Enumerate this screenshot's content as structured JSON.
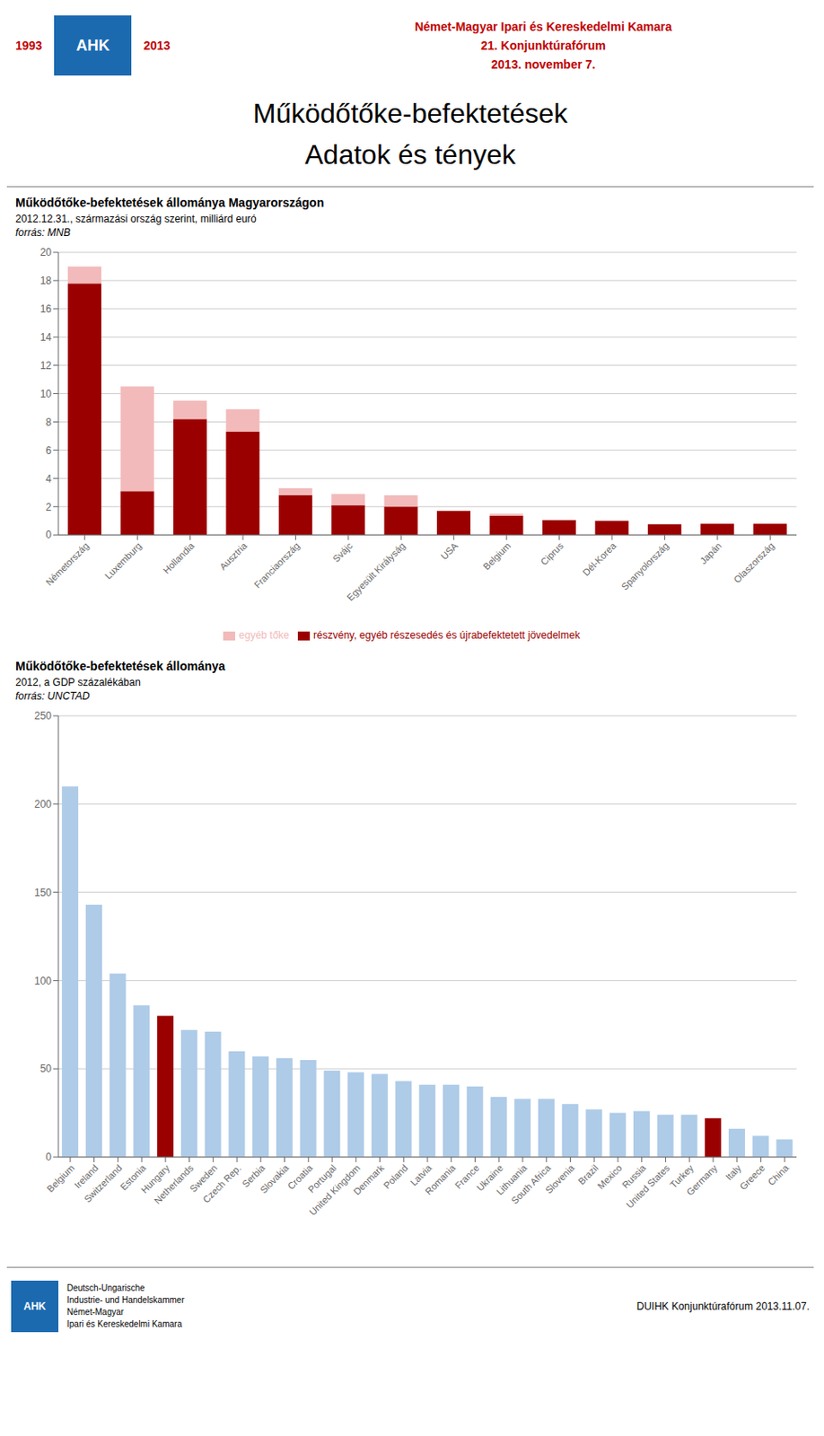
{
  "title": "Működőtőke-befektetések",
  "subtitle": "Adatok és tények",
  "annotations": [
    "1993",
    "AHK",
    "2013",
    "Német-Magyar Ipari és Kereskedelmi Kamara",
    "21. Konjunktúrafórum",
    "2013. november 7.",
    "Deutsch-Ungarische\nIndustrie- und Handelskammer\nNémet-Magyar\nIpari és Kereskedelmi Kamara",
    "AHK",
    "DUIHK Konjunktúrafórum 2013.11.07."
  ],
  "chart_data": [
    {
      "type": "bar",
      "title": "Működőtőke-befektetések állománya Magyarországon",
      "subtitle": "2012.12.31., származási ország szerint, milliárd euró",
      "annotations": [
        "forrás: MNB"
      ],
      "categories": [
        "Németország",
        "Luxemburg",
        "Hollandia",
        "Ausztria",
        "Franciaország",
        "Svájc",
        "Egyesült Királyság",
        "USA",
        "Belgium",
        "Ciprus",
        "Dél-Korea",
        "Spanyolország",
        "Japán",
        "Olaszország"
      ],
      "series": [
        {
          "name": "részvény, egyéb részesedés és újrabefektetett jövedelmek",
          "color": "#9B0000",
          "values": [
            17.8,
            3.1,
            8.2,
            7.3,
            2.8,
            2.1,
            2.0,
            1.7,
            1.35,
            1.05,
            1.0,
            0.75,
            0.78,
            0.78
          ]
        },
        {
          "name": "egyéb tőke",
          "color": "#F2BABA",
          "values": [
            1.2,
            7.4,
            1.3,
            1.6,
            0.5,
            0.8,
            0.8,
            0.0,
            0.15,
            0.0,
            0.0,
            0.0,
            0.0,
            0.0
          ]
        }
      ],
      "stacked": true,
      "ylim": [
        0,
        20
      ],
      "yticks": [
        0,
        2,
        4,
        6,
        8,
        10,
        12,
        14,
        16,
        18,
        20
      ],
      "grid": true,
      "legend": "bottom"
    },
    {
      "type": "bar",
      "title": "Működőtőke-befektetések állománya",
      "subtitle": "2012, a GDP százalékában",
      "annotations": [
        "forrás: UNCTAD"
      ],
      "categories": [
        "Belgium",
        "Ireland",
        "Switzerland",
        "Estonia",
        "Hungary",
        "Netherlands",
        "Sweden",
        "Czech Rep.",
        "Serbia",
        "Slovakia",
        "Croatia",
        "Portugal",
        "United Kingdom",
        "Denmark",
        "Poland",
        "Latvia",
        "Romania",
        "France",
        "Ukraine",
        "Lithuania",
        "South Africa",
        "Slovenia",
        "Brazil",
        "Mexico",
        "Russia",
        "United States",
        "Turkey",
        "Germany",
        "Italy",
        "Greece",
        "China"
      ],
      "values": [
        210,
        143,
        104,
        86,
        80,
        72,
        71,
        60,
        57,
        56,
        55,
        49,
        48,
        47,
        43,
        41,
        41,
        40,
        34,
        33,
        33,
        30,
        27,
        25,
        26,
        24,
        24,
        22,
        16,
        12,
        10
      ],
      "colors": [
        "#AECBE8",
        "#AECBE8",
        "#AECBE8",
        "#AECBE8",
        "#9B0000",
        "#AECBE8",
        "#AECBE8",
        "#AECBE8",
        "#AECBE8",
        "#AECBE8",
        "#AECBE8",
        "#AECBE8",
        "#AECBE8",
        "#AECBE8",
        "#AECBE8",
        "#AECBE8",
        "#AECBE8",
        "#AECBE8",
        "#AECBE8",
        "#AECBE8",
        "#AECBE8",
        "#AECBE8",
        "#AECBE8",
        "#AECBE8",
        "#AECBE8",
        "#AECBE8",
        "#AECBE8",
        "#9B0000",
        "#AECBE8",
        "#AECBE8",
        "#AECBE8"
      ],
      "ylim": [
        0,
        250
      ],
      "yticks": [
        0,
        50,
        100,
        150,
        200,
        250
      ],
      "grid": true
    }
  ]
}
